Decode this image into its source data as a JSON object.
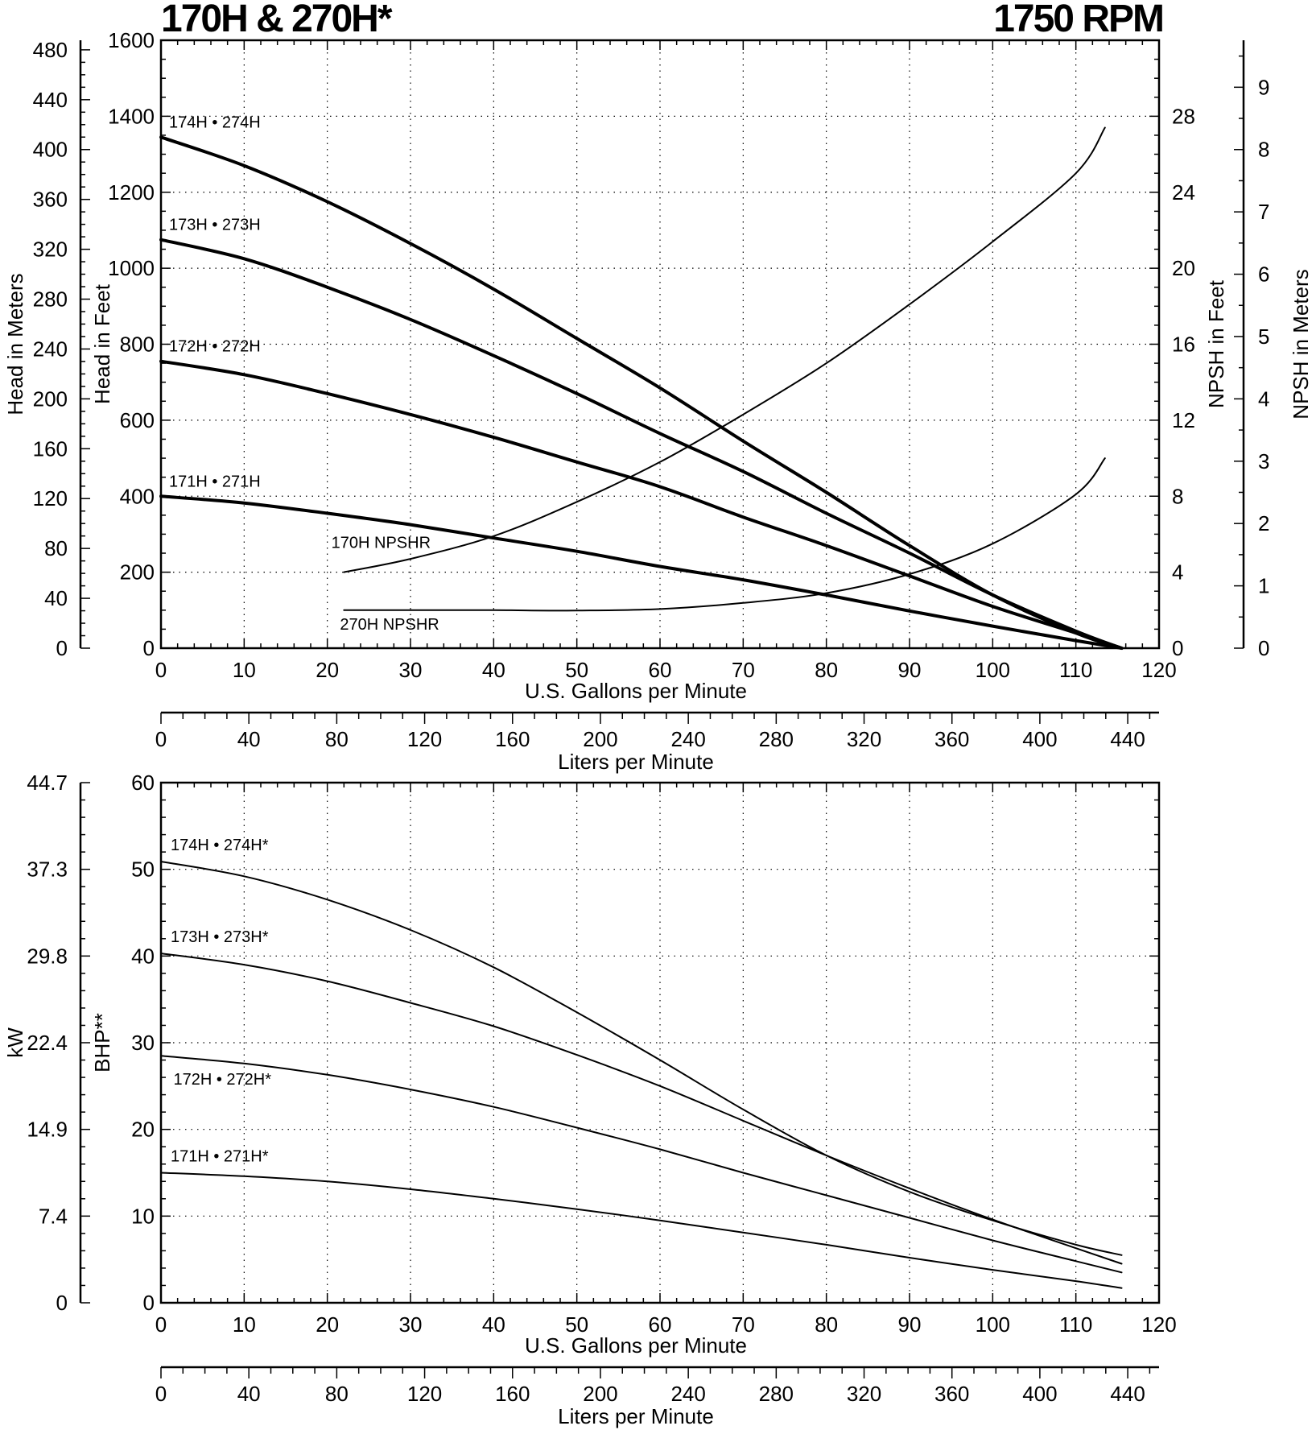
{
  "header": {
    "title_left": "170H & 270H*",
    "title_right": "1750 RPM"
  },
  "chart_data": [
    {
      "type": "line",
      "panel": "head",
      "xlabel": "U.S. Gallons per Minute",
      "xlim": [
        0,
        120
      ],
      "x_ticks": [
        0,
        10,
        20,
        30,
        40,
        50,
        60,
        70,
        80,
        90,
        100,
        110,
        120
      ],
      "x2label": "Liters per Minute",
      "x2_ticks": [
        0,
        40,
        80,
        120,
        160,
        200,
        240,
        280,
        320,
        360,
        400,
        440
      ],
      "ylabel": "Head in Feet",
      "ylim": [
        0,
        1600
      ],
      "y_ticks": [
        0,
        200,
        400,
        600,
        800,
        1000,
        1200,
        1400,
        1600
      ],
      "y2label": "Head in Meters",
      "y2_ticks": [
        0,
        40,
        80,
        120,
        160,
        200,
        240,
        280,
        320,
        360,
        400,
        440,
        480
      ],
      "y3label": "NPSH in Feet",
      "y3_ticks": [
        0,
        4,
        8,
        12,
        16,
        20,
        24,
        28
      ],
      "y4label": "NPSH in Meters",
      "y4_ticks": [
        0,
        1,
        2,
        3,
        4,
        5,
        6,
        7,
        8,
        9
      ],
      "grid": true,
      "series": [
        {
          "name": "174H • 274H",
          "axis": "head",
          "x": [
            0,
            10,
            20,
            30,
            40,
            50,
            60,
            70,
            80,
            90,
            100,
            110,
            115.5
          ],
          "y": [
            1345,
            1270,
            1175,
            1065,
            945,
            815,
            685,
            545,
            410,
            270,
            140,
            40,
            0
          ]
        },
        {
          "name": "173H • 273H",
          "axis": "head",
          "x": [
            0,
            10,
            20,
            30,
            40,
            50,
            60,
            70,
            80,
            90,
            100,
            110,
            115.5
          ],
          "y": [
            1075,
            1025,
            950,
            865,
            770,
            670,
            565,
            465,
            355,
            250,
            140,
            45,
            0
          ]
        },
        {
          "name": "172H • 272H",
          "axis": "head",
          "x": [
            0,
            10,
            20,
            30,
            40,
            50,
            60,
            70,
            80,
            90,
            100,
            110,
            115.5
          ],
          "y": [
            755,
            720,
            670,
            615,
            555,
            490,
            425,
            345,
            270,
            190,
            110,
            40,
            0
          ]
        },
        {
          "name": "171H • 271H",
          "axis": "head",
          "x": [
            0,
            10,
            20,
            30,
            40,
            50,
            60,
            70,
            80,
            90,
            100,
            110,
            115.5
          ],
          "y": [
            400,
            382,
            355,
            325,
            290,
            255,
            215,
            180,
            140,
            98,
            58,
            20,
            0
          ]
        },
        {
          "name": "170H NPSHR",
          "axis": "npsh",
          "x": [
            22,
            30,
            40,
            50,
            60,
            70,
            80,
            90,
            100,
            110,
            113.5
          ],
          "y": [
            4.0,
            4.7,
            5.9,
            7.7,
            9.8,
            12.3,
            15.0,
            18.1,
            21.4,
            25.0,
            27.4
          ]
        },
        {
          "name": "270H NPSHR",
          "axis": "npsh",
          "x": [
            22,
            30,
            40,
            50,
            60,
            70,
            80,
            90,
            100,
            110,
            113.5
          ],
          "y": [
            2.0,
            2.0,
            2.0,
            1.98,
            2.06,
            2.38,
            2.9,
            3.9,
            5.5,
            8.1,
            10.0
          ]
        }
      ]
    },
    {
      "type": "line",
      "panel": "power",
      "xlabel": "U.S. Gallons per Minute",
      "xlim": [
        0,
        120
      ],
      "x_ticks": [
        0,
        10,
        20,
        30,
        40,
        50,
        60,
        70,
        80,
        90,
        100,
        110,
        120
      ],
      "x2label": "Liters per Minute",
      "x2_ticks": [
        0,
        40,
        80,
        120,
        160,
        200,
        240,
        280,
        320,
        360,
        400,
        440
      ],
      "ylabel": "BHP**",
      "ylim": [
        0,
        60
      ],
      "y_ticks": [
        0,
        10,
        20,
        30,
        40,
        50,
        60
      ],
      "y2label": "kW",
      "y2_ticks": [
        "0",
        "7.4",
        "14.9",
        "22.4",
        "29.8",
        "37.3",
        "44.7"
      ],
      "grid": true,
      "series": [
        {
          "name": "174H • 274H*",
          "x": [
            0,
            10,
            20,
            30,
            40,
            50,
            60,
            70,
            80,
            90,
            100,
            110,
            115.5
          ],
          "y": [
            50.9,
            49.2,
            46.5,
            43.0,
            38.7,
            33.5,
            28.0,
            22.3,
            17.0,
            12.8,
            9.5,
            6.7,
            5.5
          ]
        },
        {
          "name": "173H • 273H*",
          "x": [
            0,
            10,
            20,
            30,
            40,
            50,
            60,
            70,
            80,
            90,
            100,
            110,
            115.5
          ],
          "y": [
            40.3,
            39.0,
            37.1,
            34.6,
            31.9,
            28.6,
            25.0,
            21.0,
            17.0,
            13.2,
            9.6,
            6.3,
            4.5
          ]
        },
        {
          "name": "172H • 272H*",
          "x": [
            0,
            10,
            20,
            30,
            40,
            50,
            60,
            70,
            80,
            90,
            100,
            110,
            115.5
          ],
          "y": [
            28.5,
            27.6,
            26.3,
            24.6,
            22.6,
            20.2,
            17.7,
            15.0,
            12.4,
            9.8,
            7.2,
            4.8,
            3.5
          ]
        },
        {
          "name": "171H • 271H*",
          "x": [
            0,
            10,
            20,
            30,
            40,
            50,
            60,
            70,
            80,
            90,
            100,
            110,
            115.5
          ],
          "y": [
            15.0,
            14.6,
            14.0,
            13.1,
            12.0,
            10.8,
            9.5,
            8.1,
            6.7,
            5.2,
            3.8,
            2.5,
            1.7
          ]
        }
      ]
    }
  ]
}
